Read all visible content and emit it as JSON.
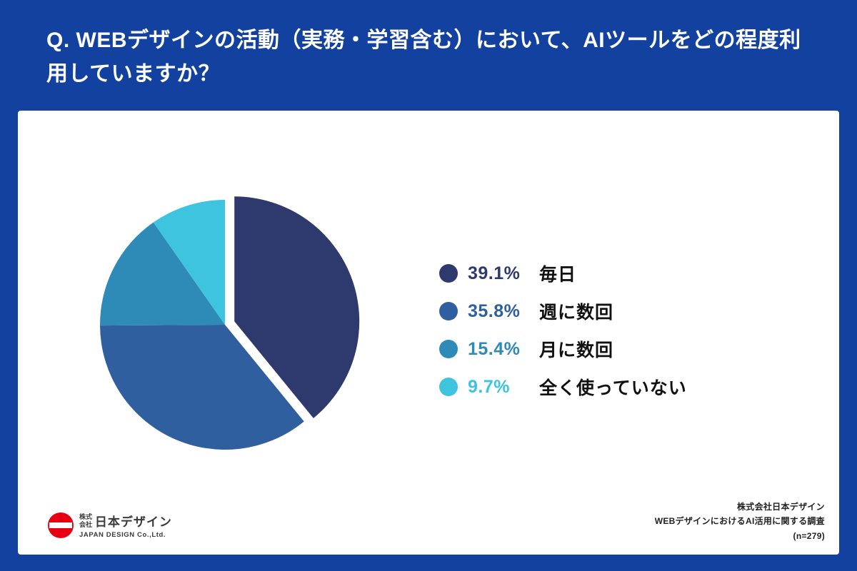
{
  "header": {
    "question": "Q. WEBデザインの活動（実務・学習含む）において、AIツールをどの程度利用していますか？"
  },
  "chart_data": {
    "type": "pie",
    "title": "Q. WEBデザインの活動（実務・学習含む）において、AIツールをどの程度利用していますか？",
    "categories": [
      "毎日",
      "週に数回",
      "月に数回",
      "全く使っていない"
    ],
    "values": [
      39.1,
      35.8,
      15.4,
      9.7
    ],
    "slices": [
      {
        "label": "毎日",
        "value": 39.1,
        "percent_label": "39.1%",
        "color": "#2e3a6d",
        "exploded": true
      },
      {
        "label": "週に数回",
        "value": 35.8,
        "percent_label": "35.8%",
        "color": "#2f5f9e",
        "exploded": false
      },
      {
        "label": "月に数回",
        "value": 15.4,
        "percent_label": "15.4%",
        "color": "#2e8bb7",
        "exploded": false
      },
      {
        "label": "全く使っていない",
        "value": 9.7,
        "percent_label": "9.7%",
        "color": "#3ec4de",
        "exploded": false
      }
    ],
    "start_angle_deg": -90,
    "direction": "clockwise",
    "legend_position": "right",
    "sample_size": "(n=279)"
  },
  "colors": {
    "page_background": "#12419f",
    "card_background": "#ffffff",
    "title_text": "#ffffff",
    "logo_red": "#e60012"
  },
  "footer": {
    "logo": {
      "company_prefix": "株式会社",
      "company_name": "日本デザイン",
      "english": "JAPAN DESIGN Co.,Ltd."
    },
    "source": {
      "company": "株式会社日本デザイン",
      "survey": "WEBデザインにおけるAI活用に関する調査",
      "sample": "(n=279)"
    }
  }
}
